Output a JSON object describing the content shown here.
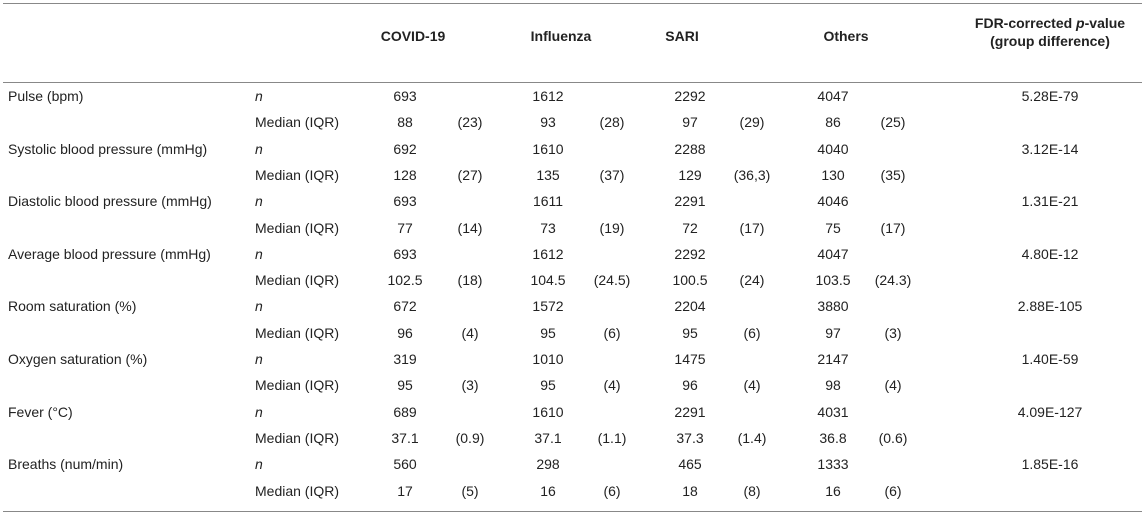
{
  "header": {
    "groups": [
      "COVID-19",
      "Influenza",
      "SARI",
      "Others"
    ],
    "pvalue": {
      "pre": "FDR-corrected ",
      "italic": "p",
      "post": "-value",
      "line2": "(group difference)"
    }
  },
  "sublabels": [
    "n",
    "Median (IQR)"
  ],
  "rows": [
    {
      "label": "Pulse (bpm)",
      "n": [
        693,
        1612,
        2292,
        4047
      ],
      "median": [
        [
          88,
          "(23)"
        ],
        [
          93,
          "(28)"
        ],
        [
          97,
          "(29)"
        ],
        [
          86,
          "(25)"
        ]
      ],
      "p": "5.28E-79"
    },
    {
      "label": "Systolic blood pressure (mmHg)",
      "n": [
        692,
        1610,
        2288,
        4040
      ],
      "median": [
        [
          128,
          "(27)"
        ],
        [
          135,
          "(37)"
        ],
        [
          129,
          "(36,3)"
        ],
        [
          130,
          "(35)"
        ]
      ],
      "p": "3.12E-14"
    },
    {
      "label": "Diastolic blood pressure (mmHg)",
      "n": [
        693,
        1611,
        2291,
        4046
      ],
      "median": [
        [
          77,
          "(14)"
        ],
        [
          73,
          "(19)"
        ],
        [
          72,
          "(17)"
        ],
        [
          75,
          "(17)"
        ]
      ],
      "p": "1.31E-21"
    },
    {
      "label": "Average blood pressure (mmHg)",
      "n": [
        693,
        1612,
        2292,
        4047
      ],
      "median": [
        [
          102.5,
          "(18)"
        ],
        [
          104.5,
          "(24.5)"
        ],
        [
          100.5,
          "(24)"
        ],
        [
          103.5,
          "(24.3)"
        ]
      ],
      "p": "4.80E-12"
    },
    {
      "label": "Room saturation (%)",
      "n": [
        672,
        1572,
        2204,
        3880
      ],
      "median": [
        [
          96,
          "(4)"
        ],
        [
          95,
          "(6)"
        ],
        [
          95,
          "(6)"
        ],
        [
          97,
          "(3)"
        ]
      ],
      "p": "2.88E-105"
    },
    {
      "label": "Oxygen saturation (%)",
      "n": [
        319,
        1010,
        1475,
        2147
      ],
      "median": [
        [
          95,
          "(3)"
        ],
        [
          95,
          "(4)"
        ],
        [
          96,
          "(4)"
        ],
        [
          98,
          "(4)"
        ]
      ],
      "p": "1.40E-59"
    },
    {
      "label": "Fever (°C)",
      "n": [
        689,
        1610,
        2291,
        4031
      ],
      "median": [
        [
          37.1,
          "(0.9)"
        ],
        [
          37.1,
          "(1.1)"
        ],
        [
          37.3,
          "(1.4)"
        ],
        [
          36.8,
          "(0.6)"
        ]
      ],
      "p": "4.09E-127"
    },
    {
      "label": "Breaths (num/min)",
      "n": [
        560,
        298,
        465,
        1333
      ],
      "median": [
        [
          17,
          "(5)"
        ],
        [
          16,
          "(6)"
        ],
        [
          18,
          "(8)"
        ],
        [
          16,
          "(6)"
        ]
      ],
      "p": "1.85E-16"
    }
  ]
}
